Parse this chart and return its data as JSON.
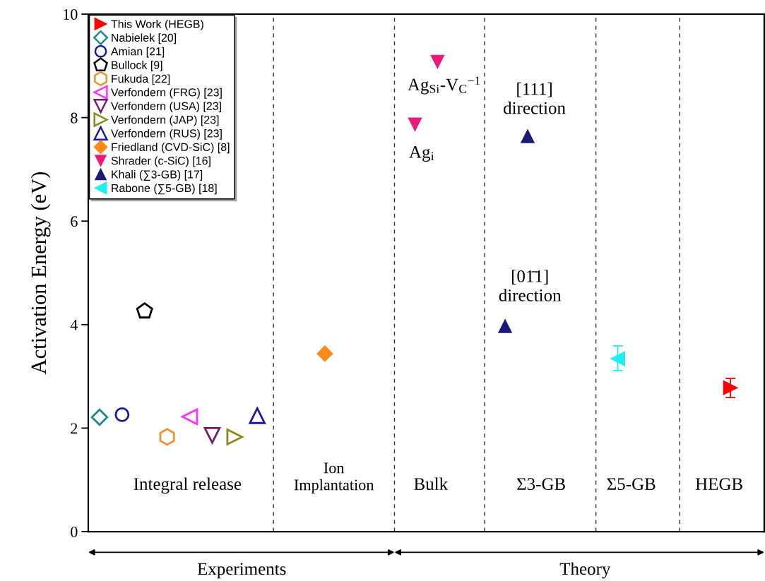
{
  "chart_data": {
    "type": "scatter",
    "ylabel": "Activation Energy (eV)",
    "categories": [
      null,
      null,
      null,
      null,
      null,
      null,
      null,
      null,
      null,
      null,
      null,
      null,
      null,
      null,
      null,
      null,
      null,
      null,
      null,
      null,
      null,
      null,
      null,
      null,
      null,
      null,
      null,
      null,
      null,
      null
    ],
    "ylim": [
      0,
      10
    ],
    "yticks": [
      0,
      2,
      4,
      6,
      8,
      10
    ],
    "grid": "x",
    "legend": "top left",
    "tick_labels": "y",
    "series": [
      {
        "name": "This Work (HEGB)",
        "color": "#ff0000",
        "marker": "triangle-right",
        "values": [
          null,
          null,
          null,
          null,
          null,
          null,
          null,
          null,
          null,
          null,
          null,
          null,
          null,
          null,
          null,
          null,
          null,
          null,
          null,
          null,
          null,
          null,
          null,
          null,
          null,
          null,
          null,
          null,
          2.78,
          null
        ],
        "errors": [
          null,
          null,
          null,
          null,
          null,
          null,
          null,
          null,
          null,
          null,
          null,
          null,
          null,
          null,
          null,
          null,
          null,
          null,
          null,
          null,
          null,
          null,
          null,
          null,
          null,
          null,
          null,
          null,
          [
            2.59,
            2.96
          ],
          null
        ]
      },
      {
        "name": "Nabielek [20]",
        "color": "#1a8a8a",
        "marker": "diamond-open",
        "values": [
          2.21,
          null,
          null,
          null,
          null,
          null,
          null,
          null,
          null,
          null,
          null,
          null,
          null,
          null,
          null,
          null,
          null,
          null,
          null,
          null,
          null,
          null,
          null,
          null,
          null,
          null,
          null,
          null,
          null,
          null
        ]
      },
      {
        "name": "Amian [21]",
        "color": "#1a1a9a",
        "marker": "circle-open",
        "values": [
          null,
          2.26,
          null,
          null,
          null,
          null,
          null,
          null,
          null,
          null,
          null,
          null,
          null,
          null,
          null,
          null,
          null,
          null,
          null,
          null,
          null,
          null,
          null,
          null,
          null,
          null,
          null,
          null,
          null,
          null
        ]
      },
      {
        "name": "Bullock [9]",
        "color": "#000000",
        "values": [
          null,
          null,
          4.26,
          null,
          null,
          null,
          null,
          null,
          null,
          null,
          null,
          null,
          null,
          null,
          null,
          null,
          null,
          null,
          null,
          null,
          null,
          null,
          null,
          null,
          null,
          null,
          null,
          null,
          null,
          null
        ]
      },
      {
        "name": "Fukuda [22]",
        "color": "#f0902e",
        "values": [
          null,
          null,
          null,
          1.83,
          null,
          null,
          null,
          null,
          null,
          null,
          null,
          null,
          null,
          null,
          null,
          null,
          null,
          null,
          null,
          null,
          null,
          null,
          null,
          null,
          null,
          null,
          null,
          null,
          null,
          null
        ]
      },
      {
        "name": "Verfondern (FRG) [23]",
        "color": "#ff33ff",
        "marker": "triangle-left-open",
        "values": [
          null,
          null,
          null,
          null,
          2.22,
          null,
          null,
          null,
          null,
          null,
          null,
          null,
          null,
          null,
          null,
          null,
          null,
          null,
          null,
          null,
          null,
          null,
          null,
          null,
          null,
          null,
          null,
          null,
          null,
          null
        ]
      },
      {
        "name": "Verfondern (USA) [23]",
        "color": "#7a1a6a",
        "marker": "triangle-down-open",
        "values": [
          null,
          null,
          null,
          null,
          null,
          1.86,
          null,
          null,
          null,
          null,
          null,
          null,
          null,
          null,
          null,
          null,
          null,
          null,
          null,
          null,
          null,
          null,
          null,
          null,
          null,
          null,
          null,
          null,
          null,
          null
        ]
      },
      {
        "name": "Verfondern (JAP) [23]",
        "color": "#8a8a1a",
        "marker": "triangle-right-open",
        "values": [
          null,
          null,
          null,
          null,
          null,
          null,
          1.83,
          null,
          null,
          null,
          null,
          null,
          null,
          null,
          null,
          null,
          null,
          null,
          null,
          null,
          null,
          null,
          null,
          null,
          null,
          null,
          null,
          null,
          null,
          null
        ]
      },
      {
        "name": "Verfondern (RUS) [23]",
        "color": "#1a1aaa",
        "marker": "triangle-open",
        "values": [
          null,
          null,
          null,
          null,
          null,
          null,
          null,
          2.24,
          null,
          null,
          null,
          null,
          null,
          null,
          null,
          null,
          null,
          null,
          null,
          null,
          null,
          null,
          null,
          null,
          null,
          null,
          null,
          null,
          null,
          null
        ]
      },
      {
        "name": "Friedland (CVD-SiC) [8]",
        "color": "#ff8a1a",
        "marker": "diamond",
        "values": [
          null,
          null,
          null,
          null,
          null,
          null,
          null,
          null,
          null,
          null,
          3.44,
          null,
          null,
          null,
          null,
          null,
          null,
          null,
          null,
          null,
          null,
          null,
          null,
          null,
          null,
          null,
          null,
          null,
          null,
          null
        ]
      },
      {
        "name": "Shrader (c-SiC) [16]",
        "color": "#ee1a7a",
        "marker": "triangle-down",
        "values": [
          null,
          null,
          null,
          null,
          null,
          null,
          null,
          null,
          null,
          null,
          null,
          null,
          null,
          null,
          7.87,
          9.08,
          null,
          null,
          null,
          null,
          null,
          null,
          null,
          null,
          null,
          null,
          null,
          null,
          null,
          null
        ]
      },
      {
        "name": "Khali (∑3-GB) [17]",
        "color": "#1a1a7a",
        "marker": "triangle",
        "values": [
          null,
          null,
          null,
          null,
          null,
          null,
          null,
          null,
          null,
          null,
          null,
          null,
          null,
          null,
          null,
          null,
          null,
          null,
          3.97,
          7.64,
          null,
          null,
          null,
          null,
          null,
          null,
          null,
          null,
          null,
          null
        ]
      },
      {
        "name": "Rabone (∑5-GB) [18]",
        "color": "#22eeee",
        "marker": "triangle-left",
        "values": [
          null,
          null,
          null,
          null,
          null,
          null,
          null,
          null,
          null,
          null,
          null,
          null,
          null,
          null,
          null,
          null,
          null,
          null,
          null,
          null,
          null,
          null,
          null,
          3.34,
          null,
          null,
          null,
          null,
          null,
          null
        ],
        "errors": [
          null,
          null,
          null,
          null,
          null,
          null,
          null,
          null,
          null,
          null,
          null,
          null,
          null,
          null,
          null,
          null,
          null,
          null,
          null,
          null,
          null,
          null,
          null,
          [
            3.11,
            3.59
          ],
          null,
          null,
          null,
          null,
          null,
          null
        ]
      }
    ],
    "annotations": [
      "Integral release",
      "Ion\nImplantation",
      "Bulk",
      "Σ3-GB",
      "Σ5-GB",
      "HEGB",
      "Experiments",
      "Theory",
      "Ag$_{Si}$-V$_{C}$$^{−1}$",
      "Ag$_{i}$",
      "[111]\ndirection",
      "[01̄1]\ndirection"
    ]
  }
}
